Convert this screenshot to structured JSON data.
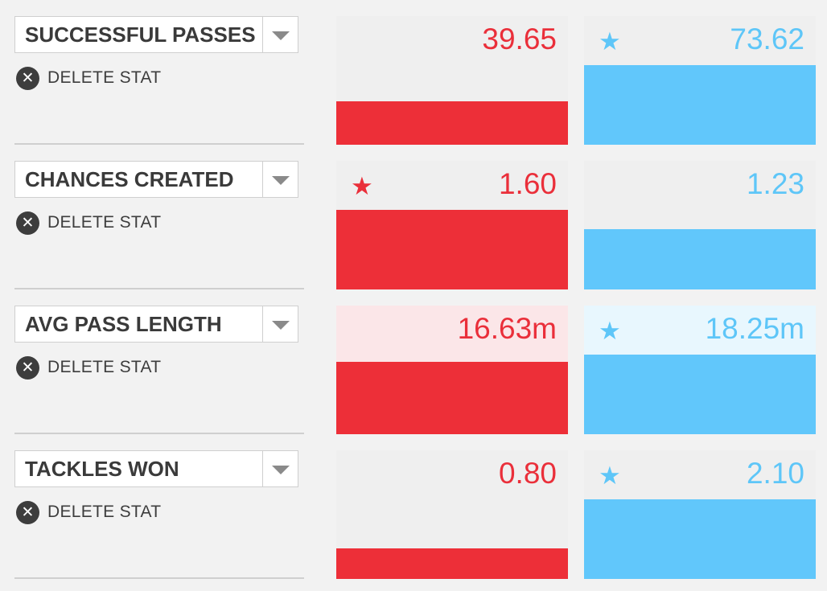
{
  "delete_label": "DELETE STAT",
  "colors": {
    "team_a": "#ed2f38",
    "team_b": "#61c7fb"
  },
  "icons": {
    "delete": "close-circle-icon",
    "dropdown": "chevron-down-icon",
    "leader": "star-icon"
  },
  "stats": [
    {
      "name": "SUCCESSFUL PASSES",
      "team_a": {
        "value": "39.65",
        "bar_fraction": 0.34,
        "leader": false
      },
      "team_b": {
        "value": "73.62",
        "bar_fraction": 0.62,
        "leader": true
      },
      "highlighted": false
    },
    {
      "name": "CHANCES CREATED",
      "team_a": {
        "value": "1.60",
        "bar_fraction": 0.62,
        "leader": true
      },
      "team_b": {
        "value": "1.23",
        "bar_fraction": 0.47,
        "leader": false
      },
      "highlighted": false
    },
    {
      "name": "AVG PASS LENGTH",
      "team_a": {
        "value": "16.63m",
        "bar_fraction": 0.56,
        "leader": false
      },
      "team_b": {
        "value": "18.25m",
        "bar_fraction": 0.62,
        "leader": true
      },
      "highlighted": true
    },
    {
      "name": "TACKLES WON",
      "team_a": {
        "value": "0.80",
        "bar_fraction": 0.24,
        "leader": false
      },
      "team_b": {
        "value": "2.10",
        "bar_fraction": 0.62,
        "leader": true
      },
      "highlighted": false
    }
  ]
}
